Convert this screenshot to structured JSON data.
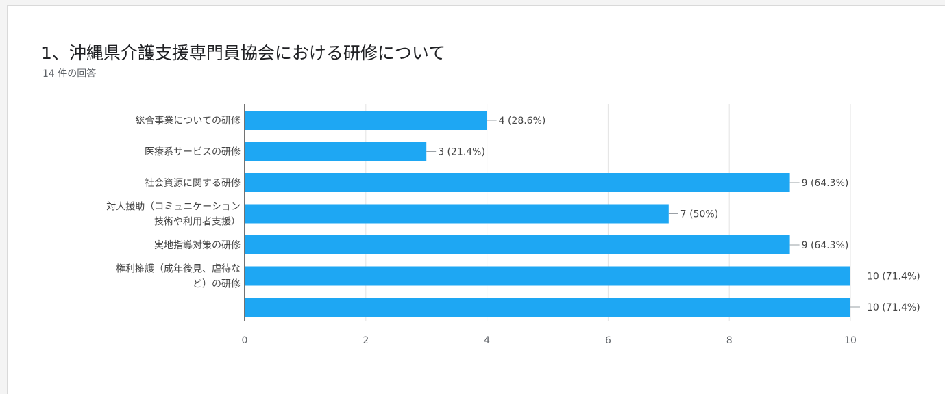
{
  "question": {
    "title": "1、沖縄県介護支援専門員協会における研修について",
    "response_count": "14 件の回答"
  },
  "chart_data": {
    "type": "bar",
    "orientation": "horizontal",
    "title": "",
    "xlabel": "",
    "ylabel": "",
    "categories": [
      [
        "総合事業についての研修"
      ],
      [
        "医療系サービスの研修"
      ],
      [
        "社会資源に関する研修"
      ],
      [
        "対人援助（コミュニケーション",
        "技術や利用者支援）"
      ],
      [
        "実地指導対策の研修"
      ],
      [
        "権利擁護（成年後見、虐待な",
        "ど）の研修"
      ],
      [
        ""
      ]
    ],
    "values": [
      4,
      3,
      9,
      7,
      9,
      10,
      10
    ],
    "data_labels": [
      "4 (28.6%)",
      "3 (21.4%)",
      "9 (64.3%)",
      "7 (50%)",
      "9 (64.3%)",
      "10 (71.4%)",
      "10 (71.4%)"
    ],
    "xlim": [
      0,
      10
    ],
    "x_ticks": [
      "0",
      "2",
      "4",
      "6",
      "8",
      "10"
    ],
    "grid": true,
    "colors": {
      "bar": "#1ea7f3",
      "grid": "#e3e3e3",
      "axis": "#5f6368",
      "text": "#444444"
    }
  }
}
